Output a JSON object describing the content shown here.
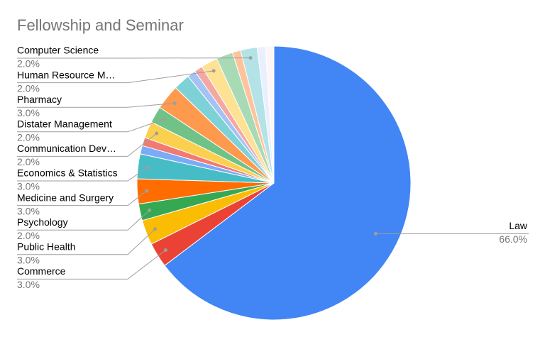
{
  "chart_data": {
    "type": "pie",
    "title": "Fellowship and Seminar",
    "categories": [
      "Law",
      "Commerce",
      "Public Health",
      "Psychology",
      "Medicine and Surgery",
      "Economics & Statistics",
      null,
      null,
      "Communication Dev…",
      "Distater Management",
      "Pharmacy",
      null,
      null,
      null,
      "Human Resource M…",
      null,
      null,
      "Computer Science",
      null,
      null
    ],
    "values": [
      66,
      3,
      3,
      2,
      3,
      3,
      1,
      1,
      2,
      2,
      3,
      2,
      1,
      1,
      2,
      2,
      1,
      2,
      1,
      1
    ],
    "value_labels": [
      "66.0%",
      "3.0%",
      "3.0%",
      "2.0%",
      "3.0%",
      "3.0%",
      null,
      null,
      "2.0%",
      "2.0%",
      "3.0%",
      null,
      null,
      null,
      "2.0%",
      null,
      null,
      "2.0%",
      null,
      null
    ],
    "colors": [
      "#4285f4",
      "#ea4335",
      "#fbbc04",
      "#34a853",
      "#ff6d01",
      "#46bdc6",
      "#7baaf7",
      "#f07b72",
      "#fcd04f",
      "#71c287",
      "#ff994d",
      "#7ed1d7",
      "#a4c2f4",
      "#f4a8a2",
      "#fde293",
      "#a8dab5",
      "#ffc39b",
      "#b3e3e6",
      "#e8f0fe",
      "#fdf6f5"
    ]
  }
}
